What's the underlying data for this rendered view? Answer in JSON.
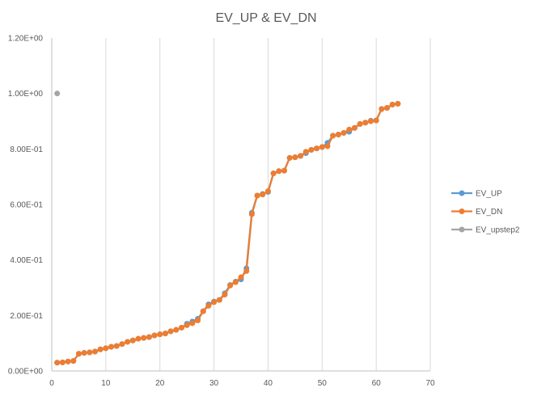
{
  "chart_data": {
    "type": "line",
    "title": "EV_UP & EV_DN",
    "xlabel": "",
    "ylabel": "",
    "xlim": [
      0,
      70
    ],
    "ylim": [
      0,
      1.2
    ],
    "x_ticks": [
      0,
      10,
      20,
      30,
      40,
      50,
      60,
      70
    ],
    "x_tick_labels": [
      "0",
      "10",
      "20",
      "30",
      "40",
      "50",
      "60",
      "70"
    ],
    "y_ticks": [
      0,
      0.2,
      0.4,
      0.6,
      0.8,
      1.0,
      1.2
    ],
    "y_tick_labels": [
      "0.00E+00",
      "2.00E-01",
      "4.00E-01",
      "6.00E-01",
      "8.00E-01",
      "1.00E+00",
      "1.20E+00"
    ],
    "grid": "vertical",
    "legend_position": "right",
    "series": [
      {
        "name": "EV_UP",
        "color": "#5B9BD5",
        "x": [
          1,
          2,
          3,
          4,
          5,
          6,
          7,
          8,
          9,
          10,
          11,
          12,
          13,
          14,
          15,
          16,
          17,
          18,
          19,
          20,
          21,
          22,
          23,
          24,
          25,
          26,
          27,
          28,
          29,
          30,
          31,
          32,
          33,
          34,
          35,
          36,
          37,
          38,
          39,
          40,
          41,
          42,
          43,
          44,
          45,
          46,
          47,
          48,
          49,
          50,
          51,
          52,
          53,
          54,
          55,
          56,
          57,
          58,
          59,
          60,
          61,
          62,
          63,
          64
        ],
        "y": [
          0.03,
          0.031,
          0.034,
          0.036,
          0.062,
          0.065,
          0.067,
          0.07,
          0.078,
          0.082,
          0.087,
          0.09,
          0.097,
          0.105,
          0.11,
          0.116,
          0.119,
          0.122,
          0.128,
          0.132,
          0.135,
          0.143,
          0.148,
          0.156,
          0.17,
          0.178,
          0.188,
          0.215,
          0.24,
          0.25,
          0.256,
          0.28,
          0.31,
          0.322,
          0.33,
          0.37,
          0.57,
          0.632,
          0.638,
          0.645,
          0.712,
          0.72,
          0.722,
          0.768,
          0.77,
          0.775,
          0.785,
          0.797,
          0.802,
          0.807,
          0.822,
          0.848,
          0.852,
          0.858,
          0.862,
          0.876,
          0.89,
          0.895,
          0.902,
          0.903,
          0.944,
          0.948,
          0.96,
          0.963
        ]
      },
      {
        "name": "EV_DN",
        "color": "#ED7D31",
        "x": [
          1,
          2,
          3,
          4,
          5,
          6,
          7,
          8,
          9,
          10,
          11,
          12,
          13,
          14,
          15,
          16,
          17,
          18,
          19,
          20,
          21,
          22,
          23,
          24,
          25,
          26,
          27,
          28,
          29,
          30,
          31,
          32,
          33,
          34,
          35,
          36,
          37,
          38,
          39,
          40,
          41,
          42,
          43,
          44,
          45,
          46,
          47,
          48,
          49,
          50,
          51,
          52,
          53,
          54,
          55,
          56,
          57,
          58,
          59,
          60,
          61,
          62,
          63,
          64
        ],
        "y": [
          0.03,
          0.031,
          0.034,
          0.036,
          0.062,
          0.065,
          0.067,
          0.07,
          0.078,
          0.082,
          0.087,
          0.09,
          0.097,
          0.105,
          0.11,
          0.116,
          0.119,
          0.122,
          0.128,
          0.132,
          0.135,
          0.143,
          0.148,
          0.156,
          0.165,
          0.172,
          0.182,
          0.215,
          0.235,
          0.248,
          0.256,
          0.275,
          0.308,
          0.32,
          0.338,
          0.36,
          0.565,
          0.632,
          0.636,
          0.648,
          0.712,
          0.72,
          0.722,
          0.768,
          0.77,
          0.775,
          0.79,
          0.797,
          0.802,
          0.807,
          0.81,
          0.848,
          0.852,
          0.858,
          0.87,
          0.876,
          0.89,
          0.895,
          0.9,
          0.903,
          0.944,
          0.948,
          0.96,
          0.963
        ]
      },
      {
        "name": "EV_upstep2",
        "color": "#A5A5A5",
        "x": [
          1
        ],
        "y": [
          1.0
        ]
      }
    ]
  }
}
